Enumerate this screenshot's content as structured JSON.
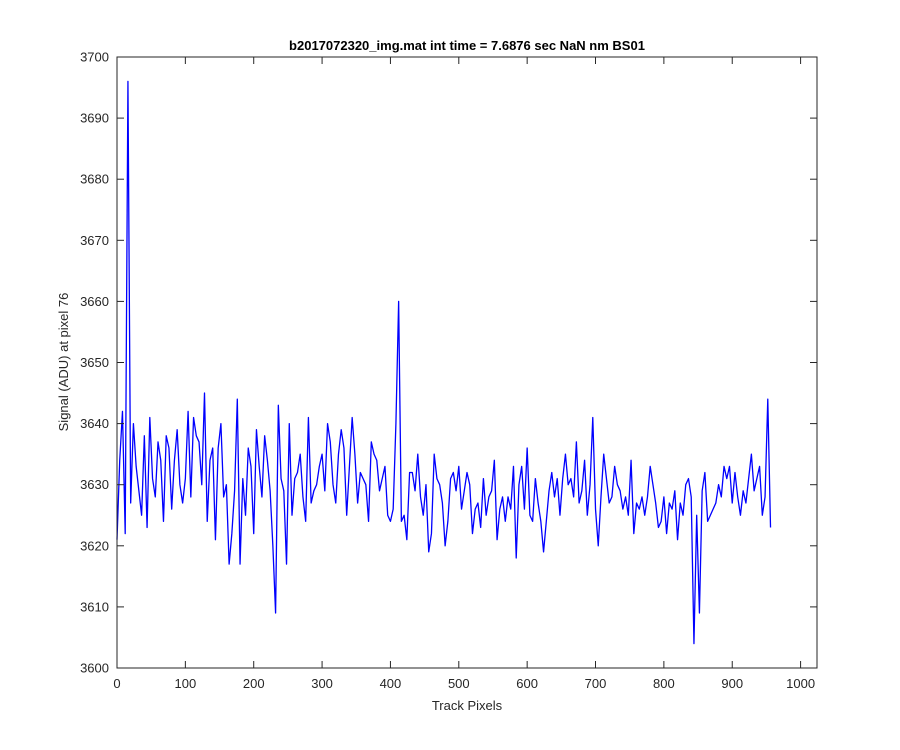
{
  "chart_data": {
    "type": "line",
    "title": "b2017072320_img.mat int time = 7.6876 sec  NaN nm BS01",
    "xlabel": "Track Pixels",
    "ylabel": "Signal (ADU) at pixel 76",
    "xlim": [
      0,
      1024
    ],
    "ylim": [
      3600,
      3700
    ],
    "xticks": [
      0,
      100,
      200,
      300,
      400,
      500,
      600,
      700,
      800,
      900,
      1000
    ],
    "yticks": [
      3600,
      3610,
      3620,
      3630,
      3640,
      3650,
      3660,
      3670,
      3680,
      3690,
      3700
    ],
    "grid": false,
    "line_color": "#0000ff",
    "series": [
      {
        "x_start": 0,
        "x_step": 4,
        "values": [
          3621,
          3634,
          3642,
          3622,
          3696,
          3627,
          3640,
          3633,
          3629,
          3625,
          3638,
          3623,
          3641,
          3631,
          3628,
          3637,
          3634,
          3624,
          3638,
          3636,
          3626,
          3634,
          3639,
          3630,
          3627,
          3631,
          3642,
          3628,
          3641,
          3638,
          3637,
          3630,
          3645,
          3624,
          3634,
          3636,
          3621,
          3636,
          3640,
          3628,
          3630,
          3617,
          3622,
          3629,
          3644,
          3617,
          3631,
          3625,
          3636,
          3633,
          3622,
          3639,
          3633,
          3628,
          3638,
          3634,
          3629,
          3620,
          3609,
          3643,
          3631,
          3629,
          3617,
          3640,
          3625,
          3631,
          3632,
          3635,
          3628,
          3624,
          3641,
          3627,
          3629,
          3630,
          3633,
          3635,
          3629,
          3640,
          3637,
          3630,
          3627,
          3635,
          3639,
          3636,
          3625,
          3633,
          3641,
          3635,
          3627,
          3632,
          3631,
          3630,
          3624,
          3637,
          3635,
          3634,
          3629,
          3631,
          3633,
          3625,
          3624,
          3626,
          3640,
          3660,
          3624,
          3625,
          3621,
          3632,
          3632,
          3629,
          3635,
          3628,
          3625,
          3630,
          3619,
          3622,
          3635,
          3631,
          3630,
          3627,
          3620,
          3624,
          3631,
          3632,
          3629,
          3633,
          3626,
          3629,
          3632,
          3630,
          3622,
          3626,
          3627,
          3623,
          3631,
          3625,
          3628,
          3629,
          3634,
          3621,
          3626,
          3628,
          3624,
          3628,
          3626,
          3633,
          3618,
          3630,
          3633,
          3626,
          3636,
          3625,
          3624,
          3631,
          3627,
          3624,
          3619,
          3624,
          3629,
          3632,
          3628,
          3631,
          3625,
          3631,
          3635,
          3630,
          3631,
          3628,
          3637,
          3627,
          3629,
          3634,
          3625,
          3630,
          3641,
          3626,
          3620,
          3628,
          3635,
          3631,
          3627,
          3628,
          3633,
          3630,
          3629,
          3626,
          3628,
          3625,
          3634,
          3622,
          3627,
          3626,
          3628,
          3625,
          3628,
          3633,
          3630,
          3627,
          3623,
          3624,
          3628,
          3622,
          3627,
          3626,
          3629,
          3621,
          3627,
          3625,
          3630,
          3631,
          3628,
          3604,
          3625,
          3609,
          3629,
          3632,
          3624,
          3625,
          3626,
          3627,
          3630,
          3628,
          3633,
          3631,
          3633,
          3627,
          3632,
          3628,
          3625,
          3629,
          3627,
          3631,
          3635,
          3629,
          3631,
          3633,
          3625,
          3628,
          3644,
          3623
        ]
      }
    ]
  }
}
